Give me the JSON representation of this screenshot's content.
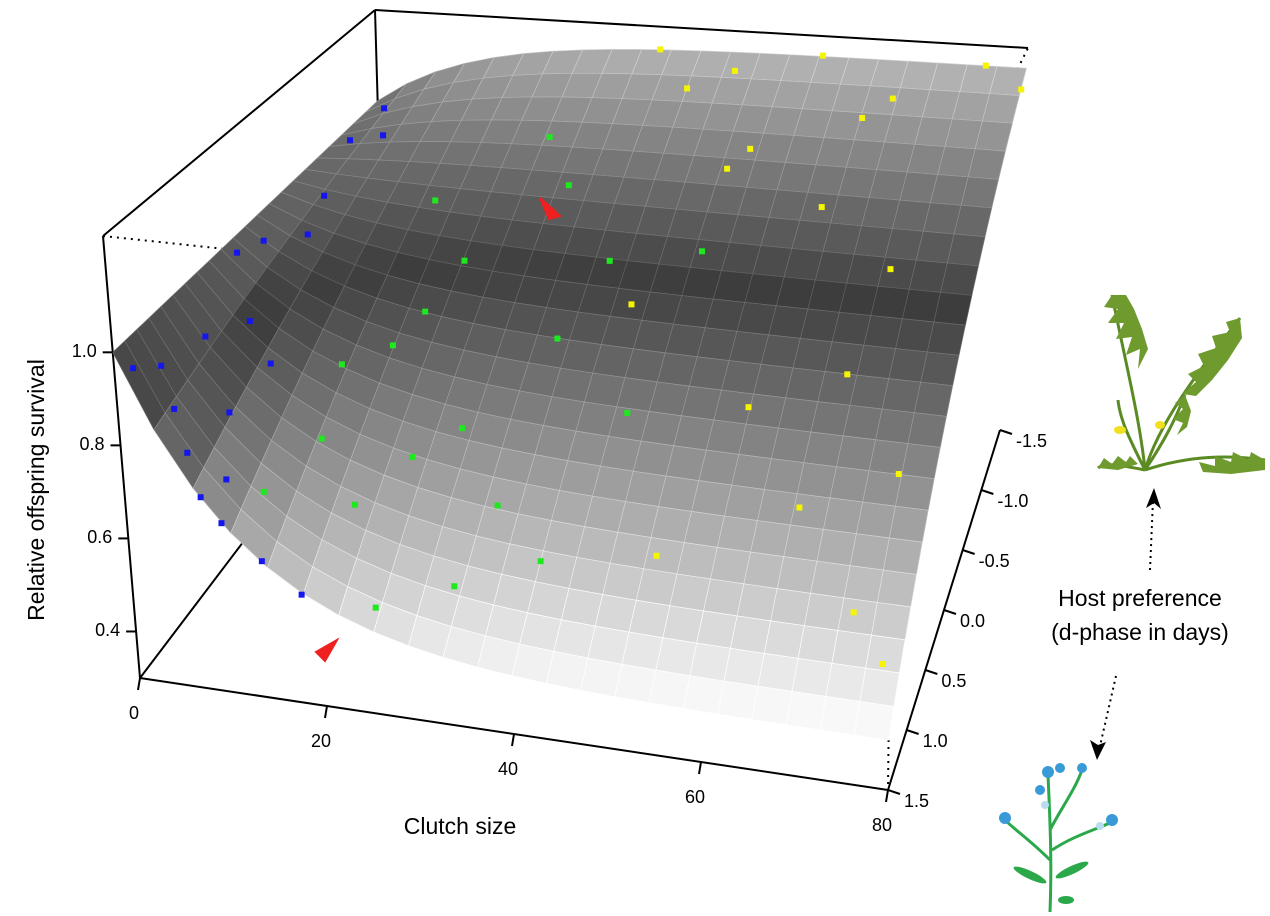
{
  "chart_data": {
    "type": "scatter3d",
    "xlabel": "Clutch size",
    "ylabel": [
      "Host preference",
      "(d-phase in days)"
    ],
    "zlabel": "Relative offspring survival",
    "xlim": [
      0,
      80
    ],
    "ylim": [
      -1.5,
      1.5
    ],
    "zlim": [
      0.3,
      1.25
    ],
    "xticks": [
      0,
      20,
      40,
      60,
      80
    ],
    "yticks": [
      -1.5,
      {
        "value": -1,
        "label": "-1.0"
      },
      -0.5,
      {
        "value": 0,
        "label": "0.0"
      },
      0.5,
      {
        "value": 1,
        "label": "1.0"
      },
      1.5
    ],
    "zticks": [
      0.4,
      0.6,
      0.8,
      {
        "value": 1,
        "label": "1.0"
      }
    ],
    "series": [
      {
        "color": "#1515f0",
        "x": [
          1,
          2,
          4,
          6,
          8,
          10,
          3,
          5,
          2,
          4,
          6,
          3,
          1,
          7,
          9,
          5,
          2,
          8,
          14,
          18
        ],
        "y": [
          1.4,
          1.2,
          1.3,
          1.4,
          1.5,
          1.5,
          0.8,
          0.5,
          0,
          -0.5,
          -1,
          -1.3,
          0.2,
          1,
          1.3,
          -0.2,
          -1,
          0.6,
          1.5,
          1.5
        ],
        "z": [
          0.95,
          0.92,
          0.85,
          0.78,
          0.71,
          0.66,
          0.91,
          0.89,
          0.97,
          0.98,
          1.03,
          1.03,
          0.98,
          0.79,
          0.71,
          0.95,
          1.01,
          0.82,
          0.59,
          0.53
        ]
      },
      {
        "color": "#1ee81e",
        "x": [
          12,
          15,
          20,
          25,
          18,
          22,
          28,
          30,
          35,
          40,
          16,
          24,
          32,
          45,
          38,
          14,
          26,
          48,
          20,
          34
        ],
        "y": [
          1.2,
          0.8,
          1,
          1.4,
          0.2,
          -0.3,
          0.5,
          -0.8,
          0,
          1,
          -0.6,
          0.7,
          1.2,
          0.3,
          -0.4,
          0.4,
          -1,
          -0.5,
          0,
          0.8
        ],
        "z": [
          0.67,
          0.71,
          0.62,
          0.5,
          0.8,
          0.9,
          0.7,
          0.99,
          0.81,
          0.55,
          0.97,
          0.67,
          0.52,
          0.73,
          0.91,
          0.79,
          1.06,
          0.93,
          0.84,
          0.61
        ]
      },
      {
        "color": "#f5f500",
        "x": [
          35,
          45,
          55,
          65,
          75,
          80,
          50,
          60,
          70,
          42,
          58,
          66,
          74,
          52,
          78,
          62,
          40,
          68,
          48,
          76
        ],
        "y": [
          -1.5,
          -1.4,
          -1.5,
          -1.3,
          -1.5,
          -1.4,
          -1,
          -0.8,
          -0.5,
          -0.2,
          0.2,
          0.6,
          1,
          0.9,
          1.2,
          -1.2,
          -1.3,
          0,
          -0.9,
          0.4
        ],
        "z": [
          1.19,
          1.17,
          1.2,
          1.15,
          1.2,
          1.17,
          1.07,
          0.99,
          0.93,
          0.86,
          0.75,
          0.64,
          0.53,
          0.57,
          0.48,
          1.12,
          1.14,
          0.8,
          1.04,
          0.69
        ]
      }
    ]
  }
}
